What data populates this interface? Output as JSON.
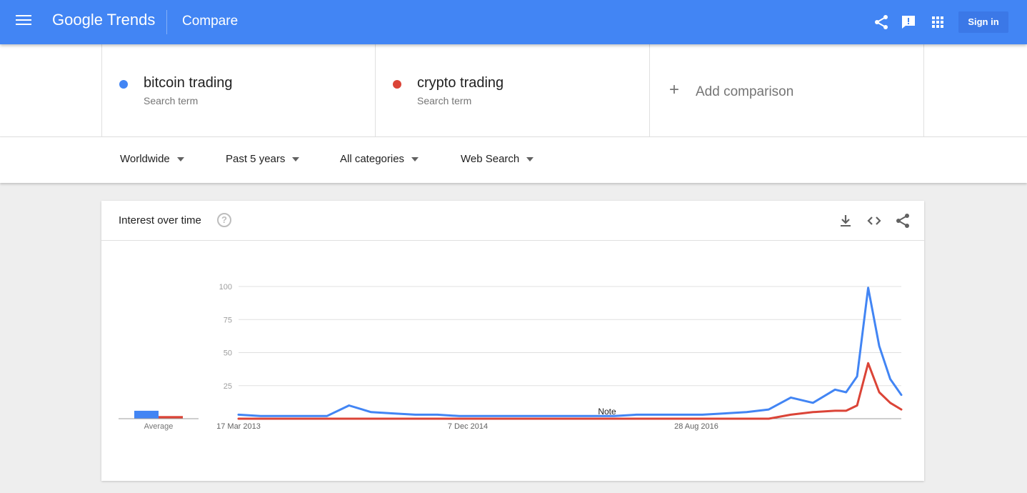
{
  "header": {
    "logo_google": "Google",
    "logo_trends": "Trends",
    "title": "Compare",
    "signin_label": "Sign in",
    "icons": [
      "menu-icon",
      "share-icon",
      "feedback-icon",
      "apps-icon"
    ]
  },
  "terms": [
    {
      "name": "bitcoin trading",
      "type": "Search term",
      "color": "#4285f4"
    },
    {
      "name": "crypto trading",
      "type": "Search term",
      "color": "#db4437"
    }
  ],
  "add_comparison": {
    "label": "Add comparison"
  },
  "filters": {
    "region": "Worldwide",
    "time": "Past 5 years",
    "category": "All categories",
    "property": "Web Search"
  },
  "card": {
    "title": "Interest over time",
    "help_symbol": "?",
    "icons": [
      "download-icon",
      "embed-icon",
      "share-icon"
    ]
  },
  "chart_data": {
    "type": "line",
    "title": "",
    "xlabel": "",
    "ylabel": "",
    "ylim": [
      0,
      100
    ],
    "yticks": [
      25,
      50,
      75,
      100
    ],
    "grid": true,
    "x_tick_labels": [
      "17 Mar 2013",
      "7 Dec 2014",
      "28 Aug 2016"
    ],
    "note_label": "Note",
    "average_label": "Average",
    "averages": [
      {
        "name": "bitcoin trading",
        "value": 6
      },
      {
        "name": "crypto trading",
        "value": 2
      }
    ],
    "x": [
      "2013-03",
      "2013-05",
      "2013-07",
      "2013-09",
      "2013-11",
      "2014-01",
      "2014-03",
      "2014-05",
      "2014-07",
      "2014-09",
      "2014-11",
      "2015-01",
      "2015-03",
      "2015-05",
      "2015-07",
      "2015-09",
      "2015-11",
      "2016-01",
      "2016-03",
      "2016-05",
      "2016-07",
      "2016-09",
      "2016-11",
      "2017-01",
      "2017-03",
      "2017-05",
      "2017-07",
      "2017-09",
      "2017-10",
      "2017-11",
      "2017-12",
      "2018-01",
      "2018-02",
      "2018-03"
    ],
    "series": [
      {
        "name": "bitcoin trading",
        "color": "#4285f4",
        "values": [
          3,
          2,
          2,
          2,
          2,
          10,
          5,
          4,
          3,
          3,
          2,
          2,
          2,
          2,
          2,
          2,
          2,
          2,
          3,
          3,
          3,
          3,
          4,
          5,
          7,
          16,
          12,
          22,
          20,
          32,
          99,
          55,
          30,
          18
        ]
      },
      {
        "name": "crypto trading",
        "color": "#db4437",
        "values": [
          0,
          0,
          0,
          0,
          0,
          0,
          0,
          0,
          0,
          0,
          0,
          0,
          0,
          0,
          0,
          0,
          0,
          0,
          0,
          0,
          0,
          0,
          0,
          0,
          0,
          3,
          5,
          6,
          6,
          10,
          42,
          20,
          12,
          7
        ]
      }
    ]
  }
}
